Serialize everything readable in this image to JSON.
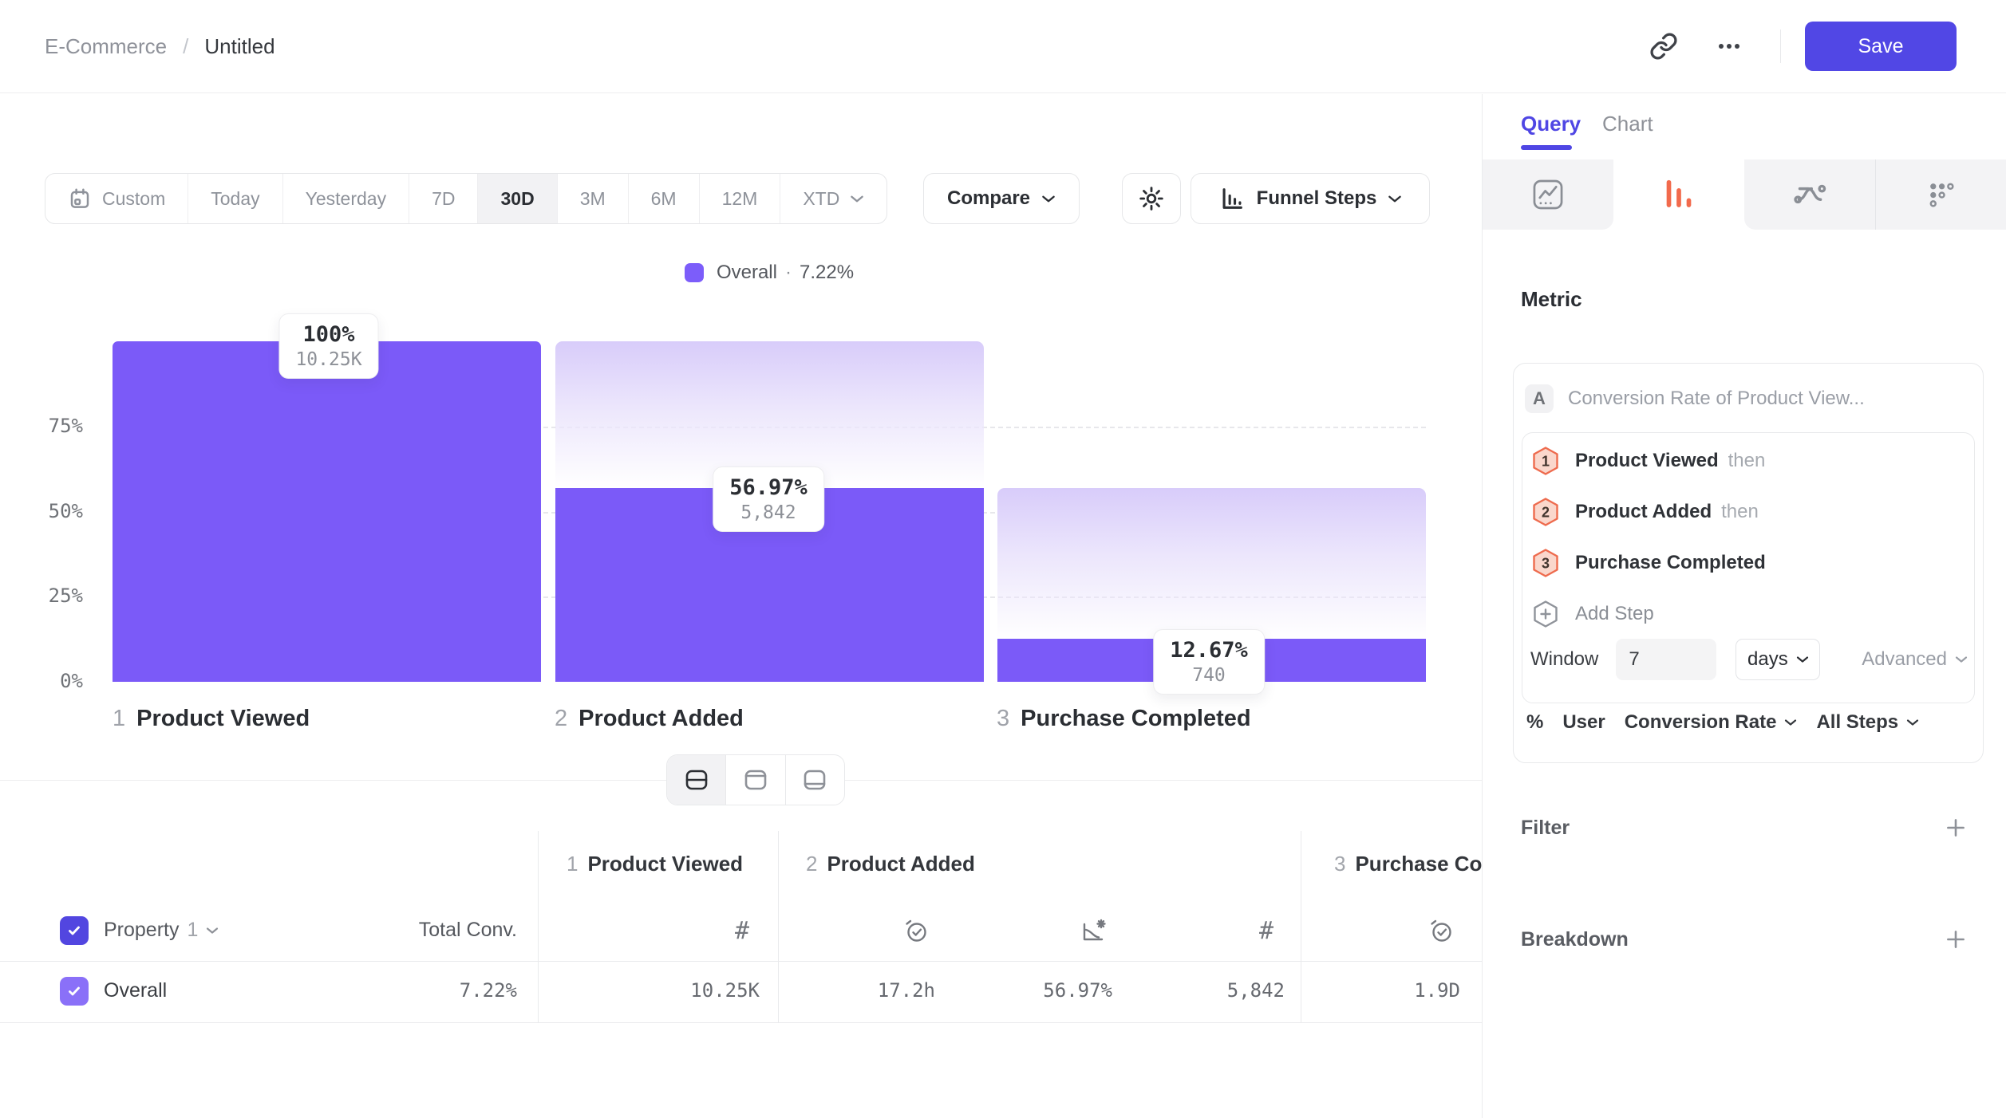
{
  "header": {
    "breadcrumb": {
      "parent": "E-Commerce",
      "separator": "/",
      "current": "Untitled"
    },
    "save_label": "Save"
  },
  "toolbar": {
    "date_ranges": [
      "Custom",
      "Today",
      "Yesterday",
      "7D",
      "30D",
      "3M",
      "6M",
      "12M",
      "XTD"
    ],
    "selected_range": "30D",
    "compare_label": "Compare",
    "view_label": "Funnel Steps"
  },
  "legend": {
    "label": "Overall",
    "separator": "·",
    "value": "7.22%",
    "color": "#7C5DFA"
  },
  "chart_data": {
    "type": "funnel-bar",
    "title": "Overall · 7.22%",
    "ylim": [
      0,
      100
    ],
    "grid": "dashed-horizontal",
    "bar_color": "#7B5AF8",
    "y_ticks": [
      "75%",
      "50%",
      "25%",
      "0%"
    ],
    "steps": [
      {
        "num": "1",
        "label": "Product Viewed",
        "pct": 100,
        "pct_label": "100%",
        "count": 10250,
        "count_label": "10.25K"
      },
      {
        "num": "2",
        "label": "Product Added",
        "pct": 56.97,
        "pct_label": "56.97%",
        "count": 5842,
        "count_label": "5,842"
      },
      {
        "num": "3",
        "label": "Purchase Completed",
        "pct": 12.67,
        "pct_label": "12.67%",
        "count": 740,
        "count_label": "740"
      }
    ]
  },
  "view_toggle": {
    "options": [
      "split-view",
      "chart-only",
      "table-only"
    ],
    "active": "split-view"
  },
  "table": {
    "property_header": {
      "label": "Property",
      "index": "1"
    },
    "total_conv_header": "Total Conv.",
    "groups": [
      {
        "num": "1",
        "label": "Product Viewed",
        "metrics": [
          "uniques-count"
        ]
      },
      {
        "num": "2",
        "label": "Product Added",
        "metrics": [
          "avg-time-to-convert",
          "conversion-rate",
          "uniques-count"
        ]
      },
      {
        "num": "3",
        "label": "Purchase Completed",
        "metrics": [
          "avg-time-to-convert"
        ]
      }
    ],
    "row": {
      "name": "Overall",
      "total_conv": "7.22%",
      "values": [
        "10.25K",
        "17.2h",
        "56.97%",
        "5,842",
        "1.9D"
      ]
    }
  },
  "panel": {
    "tabs": {
      "query": "Query",
      "chart": "Chart",
      "active": "Query"
    },
    "chart_types": [
      "insights",
      "funnel",
      "flows",
      "retention"
    ],
    "active_chart_type": "funnel",
    "accent_orange": "#F26A4C",
    "metric_heading": "Metric",
    "metric": {
      "series_badge": "A",
      "series_title": "Conversion Rate of Product View...",
      "steps": [
        {
          "num": "1",
          "label": "Product Viewed",
          "connector": "then"
        },
        {
          "num": "2",
          "label": "Product Added",
          "connector": "then"
        },
        {
          "num": "3",
          "label": "Purchase Completed",
          "connector": ""
        }
      ],
      "add_step_label": "Add Step",
      "window": {
        "label": "Window",
        "value": "7",
        "unit": "days"
      },
      "advanced_label": "Advanced",
      "measure": {
        "format": "%",
        "entity": "User",
        "metric": "Conversion Rate",
        "scope": "All Steps"
      }
    },
    "filter": {
      "label": "Filter"
    },
    "breakdown": {
      "label": "Breakdown"
    }
  }
}
